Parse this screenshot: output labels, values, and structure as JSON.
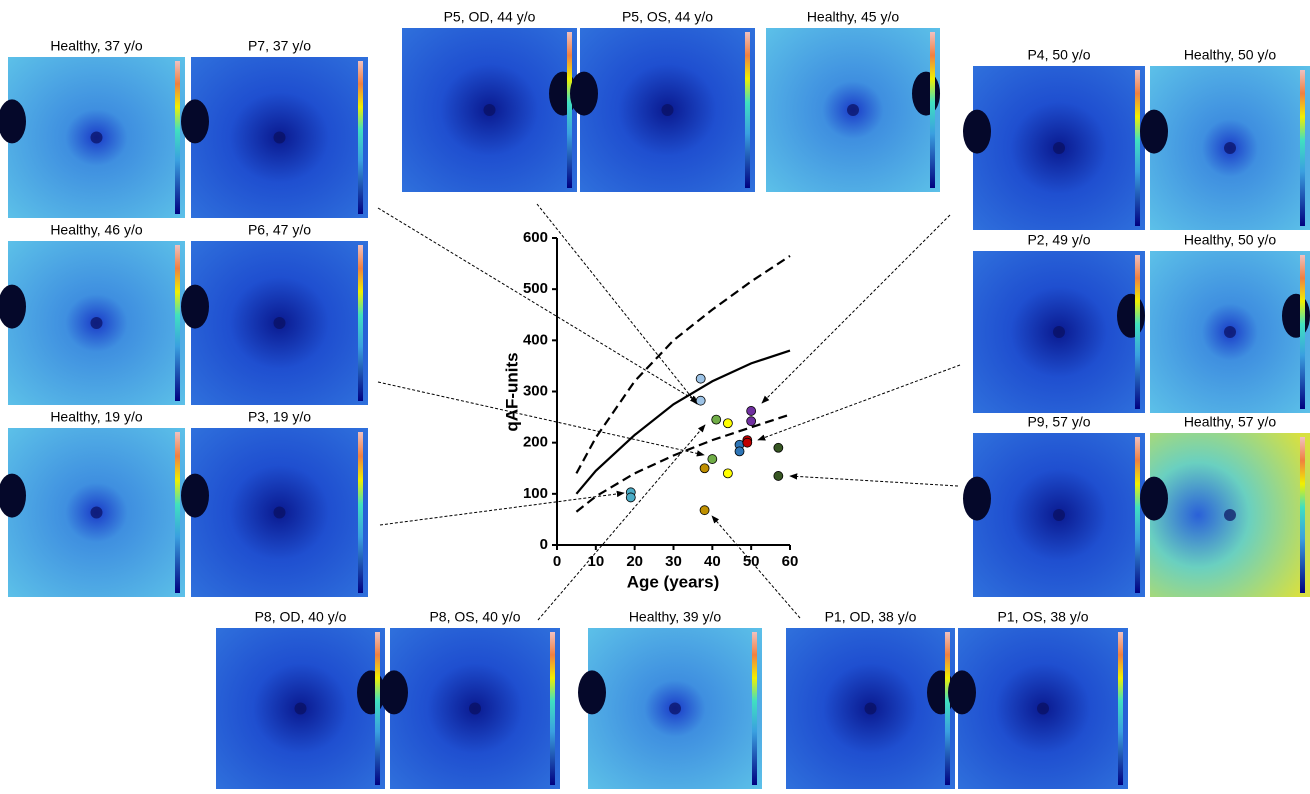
{
  "panels": [
    "Healthy, 37 y/o",
    "P7, 37 y/o",
    "Healthy, 46 y/o",
    "P6, 47 y/o",
    "Healthy, 19 y/o",
    "P3, 19 y/o",
    "P5, OD, 44 y/o",
    "P5, OS, 44 y/o",
    "Healthy, 45 y/o",
    "P4, 50 y/o",
    "Healthy, 50 y/o",
    "P2, 49 y/o",
    "Healthy, 50 y/o",
    "P9, 57 y/o",
    "Healthy, 57 y/o",
    "P8, OD, 40 y/o",
    "P8, OS, 40 y/o",
    "Healthy, 39 y/o",
    "P1, OD, 38 y/o",
    "P1, OS, 38 y/o"
  ],
  "chart_data": {
    "type": "scatter",
    "xlabel": "Age (years)",
    "ylabel": "qAF-units",
    "xlim": [
      0,
      60
    ],
    "xticks": [
      0,
      10,
      20,
      30,
      40,
      50,
      60
    ],
    "ylim": [
      0,
      600
    ],
    "yticks": [
      0,
      100,
      200,
      300,
      400,
      500,
      600
    ],
    "x": [
      37,
      37,
      41,
      44,
      47,
      47,
      49,
      49,
      50,
      50,
      57,
      57,
      40,
      38,
      44,
      19,
      19,
      38
    ],
    "values": [
      325,
      282,
      245,
      238,
      196,
      183,
      205,
      200,
      262,
      242,
      190,
      135,
      168,
      150,
      140,
      103,
      93,
      68
    ],
    "colors": [
      "#9dc3e6",
      "#9dc3e6",
      "#70ad47",
      "#ffff00",
      "#2e75b6",
      "#2e75b6",
      "#c00000",
      "#c00000",
      "#7030a0",
      "#7030a0",
      "#375623",
      "#375623",
      "#70ad47",
      "#bf8f00",
      "#ffff00",
      "#4bacc6",
      "#4bacc6",
      "#bf9000"
    ],
    "curves": [
      {
        "style": "solid",
        "x": [
          5,
          10,
          20,
          30,
          40,
          50,
          60
        ],
        "values": [
          100,
          145,
          215,
          275,
          320,
          355,
          380
        ]
      },
      {
        "style": "dashed",
        "x": [
          5,
          10,
          20,
          30,
          40,
          50,
          60
        ],
        "values": [
          140,
          210,
          320,
          400,
          460,
          515,
          565
        ]
      },
      {
        "style": "dashed",
        "x": [
          5,
          10,
          20,
          30,
          40,
          50,
          60
        ],
        "values": [
          65,
          95,
          140,
          175,
          205,
          230,
          255
        ]
      }
    ]
  }
}
